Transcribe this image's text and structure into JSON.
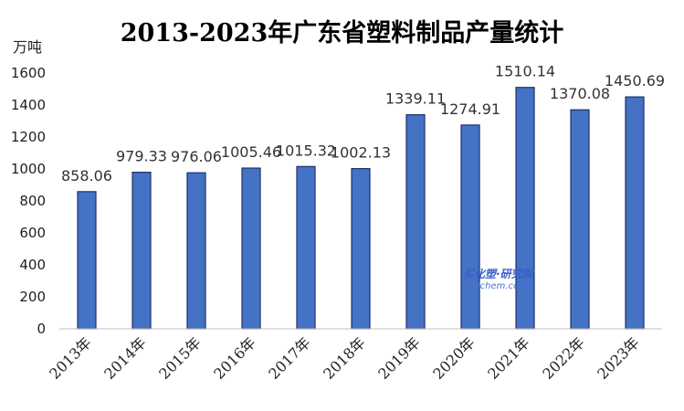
{
  "chart_data": {
    "type": "bar",
    "title": "2013-2023年广东省塑料制品产量统计",
    "unit_label": "万吨",
    "categories": [
      "2013年",
      "2014年",
      "2015年",
      "2016年",
      "2017年",
      "2018年",
      "2019年",
      "2020年",
      "2021年",
      "2022年",
      "2023年"
    ],
    "values": [
      858.06,
      979.33,
      976.06,
      1005.46,
      1015.32,
      1002.13,
      1339.11,
      1274.91,
      1510.14,
      1370.08,
      1450.69
    ],
    "data_labels": [
      "858.06",
      "979.33",
      "976.06",
      "1005.46",
      "1015.32",
      "1002.13",
      "1339.11",
      "1274.91",
      "1510.14",
      "1370.08",
      "1450.69"
    ],
    "y_ticks": [
      0,
      200,
      400,
      600,
      800,
      1000,
      1200,
      1400,
      1600
    ],
    "ylim": [
      0,
      1600
    ],
    "grid": false,
    "legend": "none",
    "bar_color": "#4472c4",
    "bar_border_color": "#1f2f6b"
  },
  "watermark": {
    "main": "买化塑·研究院",
    "sub": "buychem.com"
  }
}
